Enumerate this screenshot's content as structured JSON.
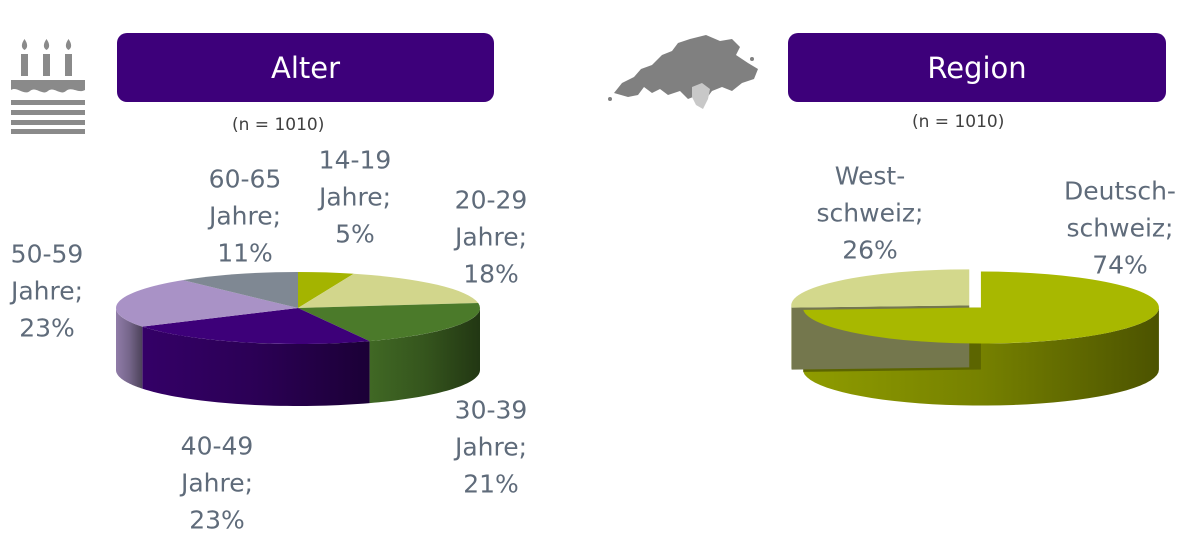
{
  "chart_data": [
    {
      "type": "pie",
      "title": "Alter",
      "sample_note": "(n =  1010)",
      "slices": [
        {
          "label_lines": [
            "14-19",
            "Jahre;",
            "5%"
          ],
          "value": 5,
          "color": "#a4b400"
        },
        {
          "label_lines": [
            "20-29",
            "Jahre;",
            "18%"
          ],
          "value": 18,
          "color": "#d2d68c"
        },
        {
          "label_lines": [
            "30-39",
            "Jahre;",
            "21%"
          ],
          "value": 21,
          "color": "#4b7a2a"
        },
        {
          "label_lines": [
            "40-49",
            "Jahre;",
            "23%"
          ],
          "value": 23,
          "color": "#3d0079"
        },
        {
          "label_lines": [
            "50-59",
            "Jahre;",
            "23%"
          ],
          "value": 23,
          "color": "#a992c6"
        },
        {
          "label_lines": [
            "60-65",
            "Jahre;",
            "11%"
          ],
          "value": 11,
          "color": "#7f8893"
        }
      ]
    },
    {
      "type": "pie",
      "title": "Region",
      "sample_note": "(n =  1010)",
      "slices": [
        {
          "label_lines": [
            "Deutsch-",
            "schweiz;",
            "74%"
          ],
          "value": 74,
          "color": "#a8b800"
        },
        {
          "label_lines": [
            "West-",
            "schweiz;",
            "26%"
          ],
          "value": 26,
          "color": "#d3d88c"
        }
      ]
    }
  ],
  "icons": {
    "age": "birthday-cake-icon",
    "region": "switzerland-map-icon"
  }
}
